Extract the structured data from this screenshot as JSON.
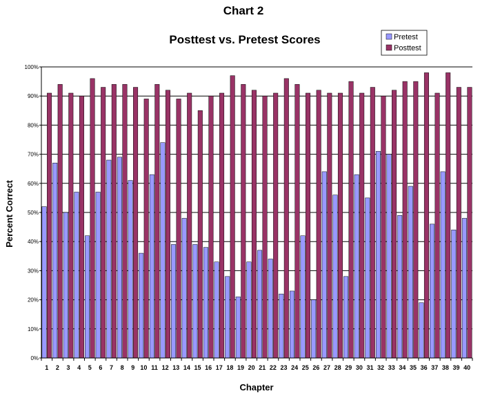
{
  "chart_data": {
    "type": "bar",
    "header": "Chart 2",
    "title": "Posttest vs. Pretest Scores",
    "xlabel": "Chapter",
    "ylabel": "Percent Correct",
    "ylim": [
      0,
      100
    ],
    "yticks": [
      "0%",
      "10%",
      "20%",
      "30%",
      "40%",
      "50%",
      "60%",
      "70%",
      "80%",
      "90%",
      "100%"
    ],
    "grid": "horizontal",
    "legend_position": "top-right",
    "categories": [
      "1",
      "2",
      "3",
      "4",
      "5",
      "6",
      "7",
      "8",
      "9",
      "10",
      "11",
      "12",
      "13",
      "14",
      "15",
      "16",
      "17",
      "18",
      "19",
      "20",
      "21",
      "22",
      "23",
      "24",
      "25",
      "26",
      "27",
      "28",
      "29",
      "30",
      "31",
      "32",
      "33",
      "34",
      "35",
      "36",
      "37",
      "38",
      "39",
      "40"
    ],
    "series": [
      {
        "name": "Pretest",
        "color": "#9999ff",
        "values": [
          52,
          67,
          50,
          57,
          42,
          57,
          68,
          69,
          61,
          36,
          63,
          74,
          39,
          48,
          39,
          38,
          33,
          28,
          21,
          33,
          37,
          34,
          22,
          23,
          42,
          20,
          64,
          56,
          28,
          63,
          55,
          71,
          70,
          49,
          59,
          19,
          46,
          64,
          44,
          48
        ]
      },
      {
        "name": "Posttest",
        "color": "#993366",
        "values": [
          91,
          94,
          91,
          90,
          96,
          93,
          94,
          94,
          93,
          89,
          94,
          92,
          89,
          91,
          85,
          90,
          91,
          97,
          94,
          92,
          90,
          91,
          96,
          94,
          91,
          92,
          91,
          91,
          95,
          91,
          93,
          90,
          92,
          95,
          95,
          98,
          91,
          98,
          93,
          93
        ]
      }
    ]
  }
}
